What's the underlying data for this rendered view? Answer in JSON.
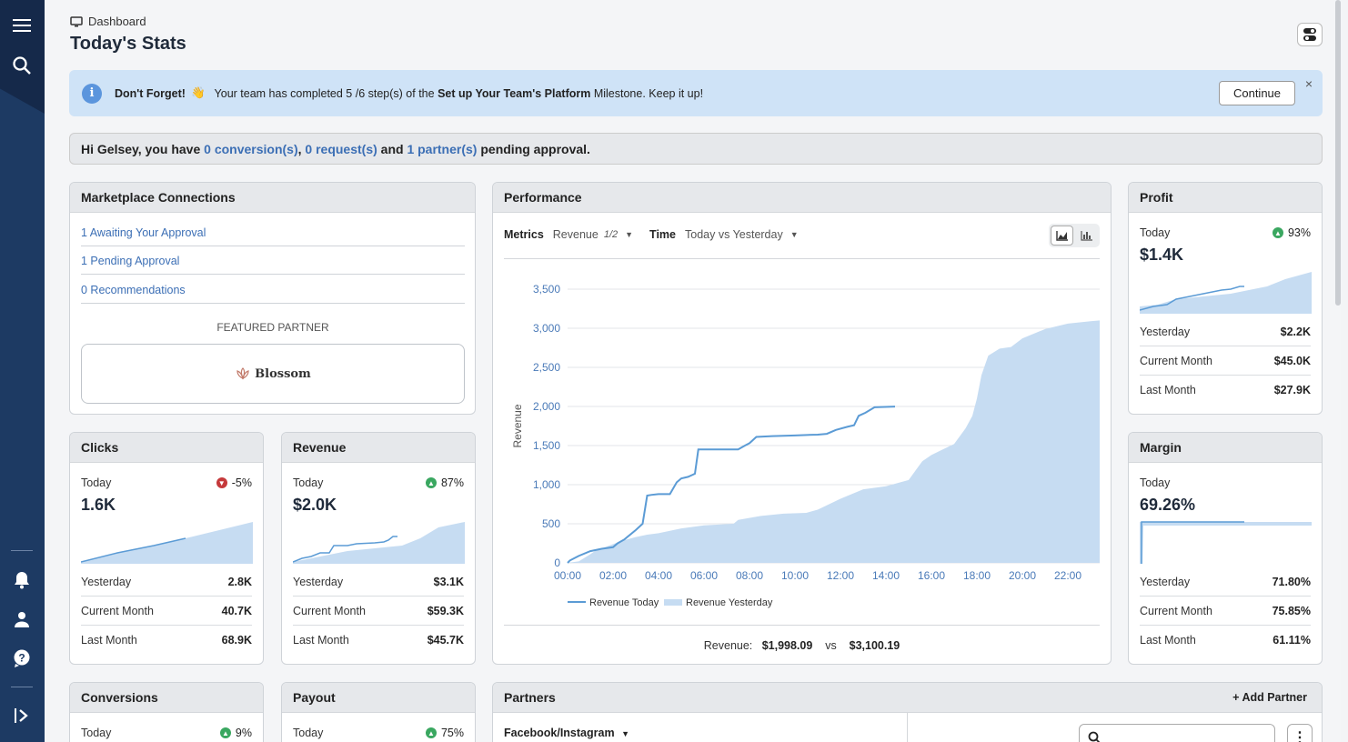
{
  "breadcrumb": "Dashboard",
  "title": "Today's Stats",
  "banner": {
    "lead": "Don't Forget!",
    "emoji": "👋",
    "text_before": "Your team has completed 5 /6 step(s) of the ",
    "milestone": "Set up Your Team's Platform",
    "text_after": " Milestone. Keep it up!",
    "continue": "Continue",
    "close": "×"
  },
  "pending": {
    "before": "Hi Gelsey, you have ",
    "conversions": "0 conversion(s)",
    "sep1": ", ",
    "requests": "0 request(s)",
    "sep2": " and ",
    "partners": "1 partner(s)",
    "after": " pending approval."
  },
  "marketplace": {
    "title": "Marketplace Connections",
    "links": [
      "1 Awaiting Your Approval",
      "1 Pending Approval",
      "0 Recommendations"
    ],
    "featured_label": "FEATURED PARTNER",
    "partner_name": "Blossom"
  },
  "clicks": {
    "title": "Clicks",
    "today_label": "Today",
    "change": "-5%",
    "value": "1.6K",
    "rows": [
      {
        "label": "Yesterday",
        "value": "2.8K"
      },
      {
        "label": "Current Month",
        "value": "40.7K"
      },
      {
        "label": "Last Month",
        "value": "68.9K"
      }
    ]
  },
  "revenue": {
    "title": "Revenue",
    "today_label": "Today",
    "change": "87%",
    "value": "$2.0K",
    "rows": [
      {
        "label": "Yesterday",
        "value": "$3.1K"
      },
      {
        "label": "Current Month",
        "value": "$59.3K"
      },
      {
        "label": "Last Month",
        "value": "$45.7K"
      }
    ]
  },
  "profit": {
    "title": "Profit",
    "today_label": "Today",
    "change": "93%",
    "value": "$1.4K",
    "rows": [
      {
        "label": "Yesterday",
        "value": "$2.2K"
      },
      {
        "label": "Current Month",
        "value": "$45.0K"
      },
      {
        "label": "Last Month",
        "value": "$27.9K"
      }
    ]
  },
  "margin": {
    "title": "Margin",
    "today_label": "Today",
    "value": "69.26%",
    "rows": [
      {
        "label": "Yesterday",
        "value": "71.80%"
      },
      {
        "label": "Current Month",
        "value": "75.85%"
      },
      {
        "label": "Last Month",
        "value": "61.11%"
      }
    ]
  },
  "conversions": {
    "title": "Conversions",
    "today_label": "Today",
    "change": "9%"
  },
  "payout": {
    "title": "Payout",
    "today_label": "Today",
    "change": "75%"
  },
  "partners_card": {
    "title": "Partners",
    "add": "Add Partner",
    "select": "Facebook/Instagram"
  },
  "performance": {
    "title": "Performance",
    "metrics_label": "Metrics",
    "metric_value": "Revenue",
    "metric_count": "1/2",
    "time_label": "Time",
    "time_value": "Today vs Yesterday",
    "summary_label": "Revenue:",
    "summary_today": "$1,998.09",
    "summary_vs": "vs",
    "summary_yesterday": "$3,100.19"
  },
  "chart_data": {
    "type": "line",
    "title": "",
    "xlabel": "",
    "ylabel": "Revenue",
    "ylim": [
      0,
      3500
    ],
    "yticks": [
      0,
      500,
      1000,
      1500,
      2000,
      2500,
      3000,
      3500
    ],
    "yticklabels": [
      "0",
      "500",
      "1,000",
      "1,500",
      "2,000",
      "2,500",
      "3,000",
      "3,500"
    ],
    "xticks": [
      "00:00",
      "02:00",
      "04:00",
      "06:00",
      "08:00",
      "10:00",
      "12:00",
      "14:00",
      "16:00",
      "18:00",
      "20:00",
      "22:00"
    ],
    "grid": true,
    "legend": "bottom",
    "colors": {
      "today": "#5b9bd5",
      "yesterday": "#c6dcf2"
    },
    "series": [
      {
        "name": "Revenue Today",
        "style": "line",
        "points": [
          [
            0,
            0
          ],
          [
            0.1,
            30
          ],
          [
            0.5,
            90
          ],
          [
            1,
            150
          ],
          [
            1.5,
            180
          ],
          [
            2,
            200
          ],
          [
            2.2,
            250
          ],
          [
            2.5,
            300
          ],
          [
            3,
            420
          ],
          [
            3.3,
            500
          ],
          [
            3.5,
            860
          ],
          [
            3.7,
            870
          ],
          [
            4,
            880
          ],
          [
            4.5,
            880
          ],
          [
            4.8,
            1030
          ],
          [
            5,
            1080
          ],
          [
            5.3,
            1100
          ],
          [
            5.6,
            1140
          ],
          [
            5.75,
            1450
          ],
          [
            6,
            1450
          ],
          [
            7,
            1450
          ],
          [
            7.5,
            1450
          ],
          [
            7.8,
            1500
          ],
          [
            8,
            1530
          ],
          [
            8.3,
            1610
          ],
          [
            9,
            1620
          ],
          [
            10,
            1630
          ],
          [
            11,
            1640
          ],
          [
            11.4,
            1650
          ],
          [
            11.8,
            1700
          ],
          [
            12.3,
            1740
          ],
          [
            12.6,
            1760
          ],
          [
            12.8,
            1880
          ],
          [
            13.1,
            1920
          ],
          [
            13.5,
            1990
          ],
          [
            14.4,
            1998
          ]
        ]
      },
      {
        "name": "Revenue Yesterday",
        "style": "area",
        "points": [
          [
            0,
            0
          ],
          [
            0.5,
            20
          ],
          [
            1,
            110
          ],
          [
            1.2,
            150
          ],
          [
            2,
            240
          ],
          [
            2.5,
            290
          ],
          [
            3,
            330
          ],
          [
            3.5,
            360
          ],
          [
            4,
            380
          ],
          [
            5,
            440
          ],
          [
            6,
            480
          ],
          [
            7.3,
            500
          ],
          [
            7.5,
            550
          ],
          [
            8.5,
            600
          ],
          [
            9.5,
            630
          ],
          [
            10.5,
            640
          ],
          [
            11,
            680
          ],
          [
            12,
            820
          ],
          [
            13,
            940
          ],
          [
            14,
            980
          ],
          [
            15,
            1060
          ],
          [
            15.3,
            1180
          ],
          [
            15.6,
            1300
          ],
          [
            16,
            1380
          ],
          [
            16.5,
            1450
          ],
          [
            17,
            1520
          ],
          [
            17.5,
            1720
          ],
          [
            17.8,
            1880
          ],
          [
            18,
            2100
          ],
          [
            18.2,
            2400
          ],
          [
            18.5,
            2650
          ],
          [
            19,
            2740
          ],
          [
            19.5,
            2760
          ],
          [
            20,
            2870
          ],
          [
            21,
            2990
          ],
          [
            22,
            3060
          ],
          [
            23,
            3090
          ],
          [
            23.4,
            3100
          ]
        ]
      }
    ]
  }
}
